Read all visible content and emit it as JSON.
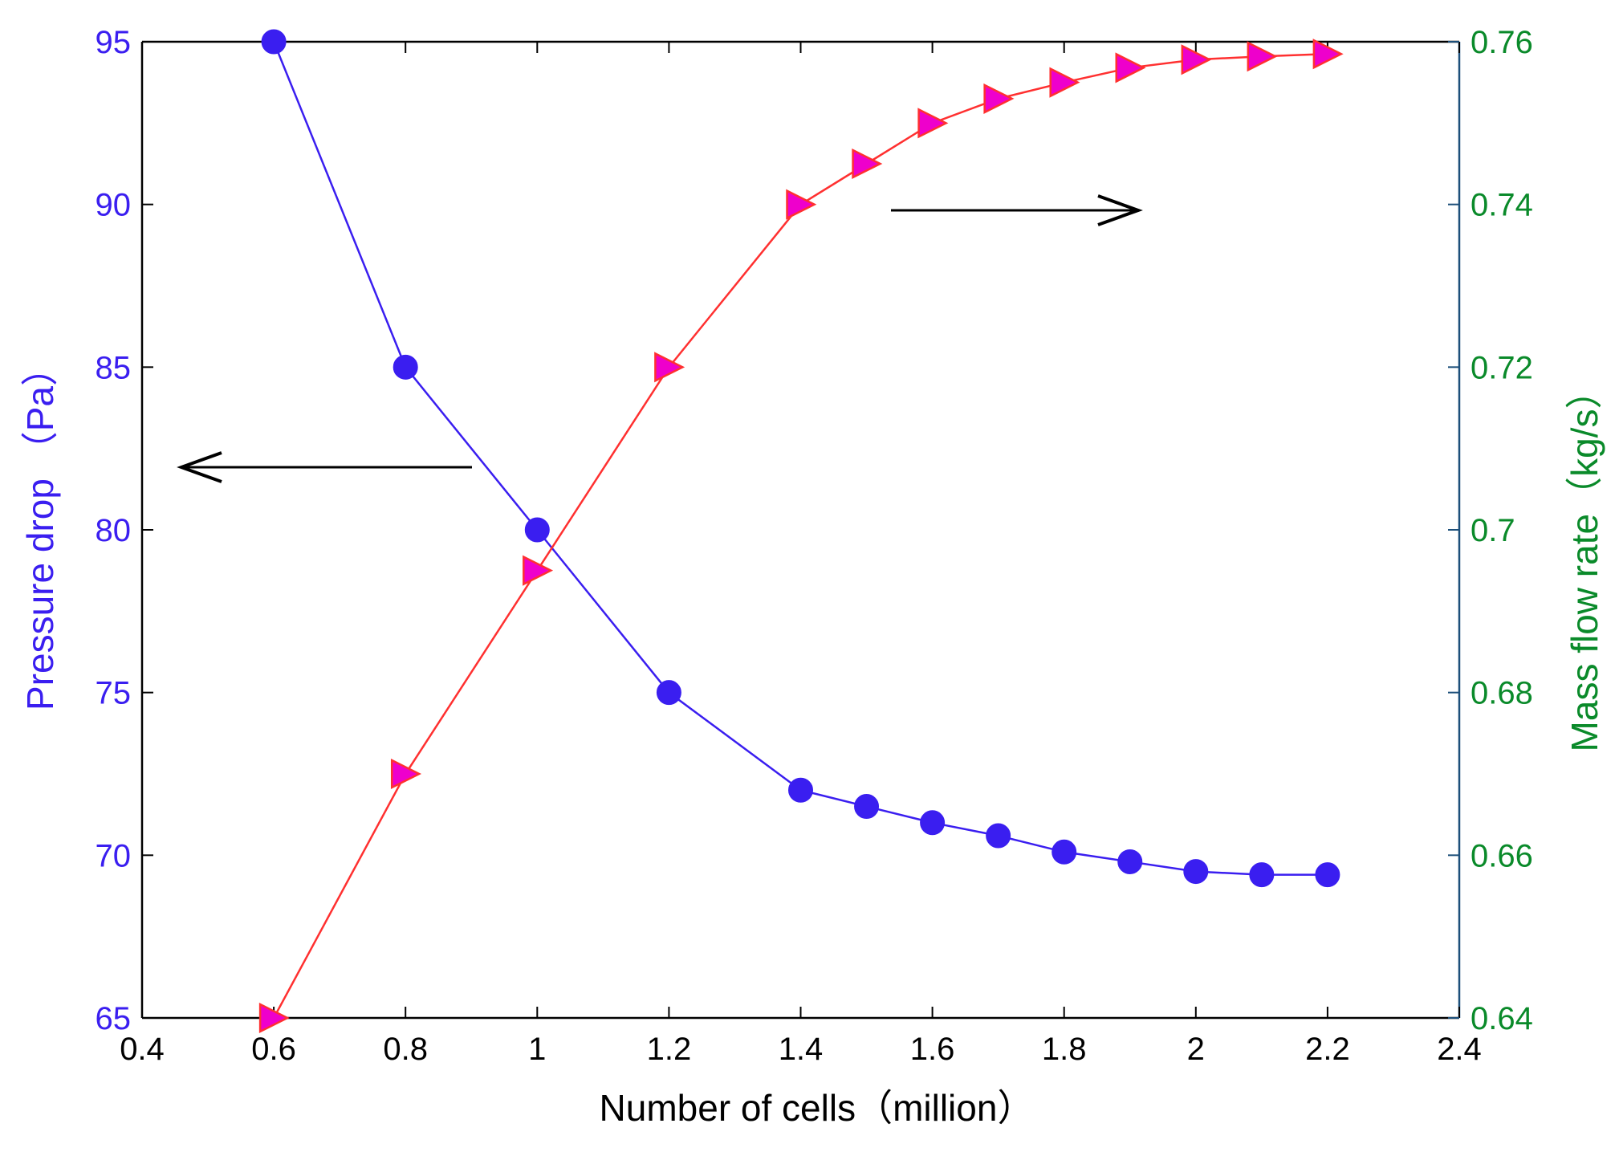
{
  "chart_data": {
    "type": "line",
    "title": "",
    "xlabel": "Number of cells（million）",
    "ylabel_left": "Pressure drop （Pa）",
    "ylabel_right": "Mass flow rate（kg/s）",
    "xlim": [
      0.4,
      2.4
    ],
    "ylim_left": [
      65,
      95
    ],
    "ylim_right": [
      0.64,
      0.76
    ],
    "xticks": [
      "0.4",
      "0.6",
      "0.8",
      "1",
      "1.2",
      "1.4",
      "1.6",
      "1.8",
      "2",
      "2.2",
      "2.4"
    ],
    "yticks_left": [
      "65",
      "70",
      "75",
      "80",
      "85",
      "90",
      "95"
    ],
    "yticks_right": [
      "0.64",
      "0.66",
      "0.68",
      "0.7",
      "0.72",
      "0.74",
      "0.76"
    ],
    "grid": false,
    "series": [
      {
        "name": "Pressure drop",
        "axis": "left",
        "color": "#3a1ef0",
        "marker": "circle",
        "x": [
          0.6,
          0.8,
          1.0,
          1.2,
          1.4,
          1.5,
          1.6,
          1.7,
          1.8,
          1.9,
          2.0,
          2.1,
          2.2
        ],
        "values": [
          95,
          85,
          80,
          75,
          72.0,
          71.5,
          71.0,
          70.6,
          70.1,
          69.8,
          69.5,
          69.4,
          69.4
        ]
      },
      {
        "name": "Mass flow rate",
        "axis": "right",
        "color": "#ff3030",
        "marker_color": "#ee00cc",
        "marker": "triangle-right",
        "x": [
          0.6,
          0.8,
          1.0,
          1.2,
          1.4,
          1.5,
          1.6,
          1.7,
          1.8,
          1.9,
          2.0,
          2.1,
          2.2
        ],
        "values": [
          0.64,
          0.67,
          0.695,
          0.72,
          0.74,
          0.745,
          0.75,
          0.753,
          0.755,
          0.7568,
          0.7578,
          0.7582,
          0.7585
        ]
      }
    ],
    "annotations": [
      {
        "type": "arrow",
        "direction": "left",
        "meaning": "points to left axis (Pressure drop)",
        "color": "#000000"
      },
      {
        "type": "arrow",
        "direction": "right",
        "meaning": "points to right axis (Mass flow rate)",
        "color": "#000000"
      }
    ],
    "colors": {
      "left_axis": "#3a1ef0",
      "right_axis": "#0a8a2a",
      "right_axis_line": "#1c4f7a",
      "frame": "#000000"
    }
  }
}
